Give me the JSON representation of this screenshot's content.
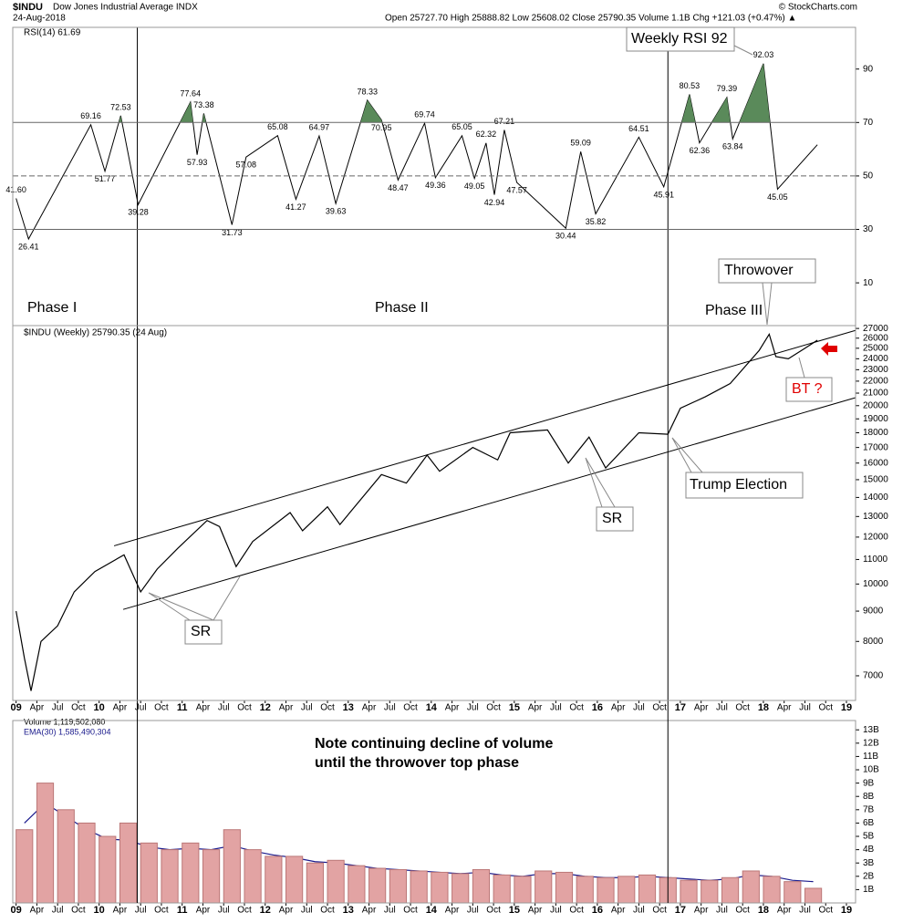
{
  "header": {
    "symbol": "$INDU",
    "name": "Dow Jones Industrial Average INDX",
    "date": "24-Aug-2018",
    "quote": "Open 25727.70 High 25888.82 Low 25608.02 Close 25790.35 Volume 1.1B Chg +121.03 (+0.47%) ▲",
    "credit": "© StockCharts.com"
  },
  "annotations": {
    "phase1": "Phase I",
    "phase2": "Phase II",
    "phase3": "Phase III",
    "weekly_rsi": "Weekly RSI 92",
    "throwover": "Throwover",
    "trump": "Trump Election",
    "sr1": "SR",
    "sr2": "SR",
    "bt": "BT ?",
    "note1": "Note continuing decline of volume",
    "note2": "until the throwover top phase"
  },
  "chart_data": [
    {
      "type": "line",
      "legend": "RSI(14) 61.69",
      "color": "#000000",
      "fill_color": "#5a8a5a",
      "fill_above": 70,
      "levels": [
        70,
        50,
        30
      ],
      "xlim": [
        2008.96,
        2019.11
      ],
      "ylim": [
        -6,
        105.6
      ],
      "yticks": [
        10,
        30,
        50,
        70,
        90
      ],
      "x": [
        2009.0,
        2009.15,
        2009.9,
        2010.07,
        2010.26,
        2010.47,
        2011.1,
        2011.18,
        2011.26,
        2011.6,
        2011.77,
        2012.15,
        2012.37,
        2012.65,
        2012.85,
        2013.23,
        2013.4,
        2013.6,
        2013.92,
        2014.05,
        2014.37,
        2014.52,
        2014.66,
        2014.76,
        2014.88,
        2015.03,
        2015.62,
        2015.8,
        2015.98,
        2016.5,
        2016.8,
        2017.11,
        2017.23,
        2017.56,
        2017.63,
        2018.0,
        2018.17,
        2018.65
      ],
      "values": [
        41.6,
        26.41,
        69.16,
        51.77,
        72.53,
        39.28,
        77.64,
        57.93,
        73.38,
        31.73,
        57.08,
        65.08,
        41.27,
        64.97,
        39.63,
        78.33,
        70.95,
        48.47,
        69.74,
        49.36,
        65.05,
        49.05,
        62.32,
        42.94,
        67.21,
        47.57,
        30.44,
        59.09,
        35.82,
        64.51,
        45.91,
        80.53,
        62.36,
        79.39,
        63.84,
        92.03,
        45.05,
        61.69
      ],
      "value_labels": [
        "41.60",
        "26.41",
        "69.16",
        "51.77",
        "72.53",
        "39.28",
        "77.64",
        "57.93",
        "73.38",
        "31.73",
        "57.08",
        "65.08",
        "41.27",
        "64.97",
        "39.63",
        "78.33",
        "70.95",
        "48.47",
        "69.74",
        "49.36",
        "65.05",
        "49.05",
        "62.32",
        "42.94",
        "67.21",
        "47.57",
        "30.44",
        "59.09",
        "35.82",
        "64.51",
        "45.91",
        "80.53",
        "62.36",
        "79.39",
        "63.84",
        "92.03",
        "45.05",
        null
      ]
    },
    {
      "type": "line",
      "legend": "$INDU (Weekly) 25790.35 (24 Aug)",
      "color": "#000000",
      "log_scale": true,
      "xlim": [
        2008.96,
        2019.11
      ],
      "ylim": [
        6360,
        27300
      ],
      "yticks": [
        7000,
        8000,
        9000,
        10000,
        11000,
        12000,
        13000,
        14000,
        15000,
        16000,
        17000,
        18000,
        19000,
        20000,
        21000,
        22000,
        23000,
        24000,
        25000,
        26000,
        27000
      ],
      "xticks": [
        {
          "value": 2009,
          "label": "09"
        },
        {
          "value": 2009.25,
          "label": "Apr"
        },
        {
          "value": 2009.5,
          "label": "Jul"
        },
        {
          "value": 2009.75,
          "label": "Oct"
        },
        {
          "value": 2010,
          "label": "10"
        },
        {
          "value": 2010.25,
          "label": "Apr"
        },
        {
          "value": 2010.5,
          "label": "Jul"
        },
        {
          "value": 2010.75,
          "label": "Oct"
        },
        {
          "value": 2011,
          "label": "11"
        },
        {
          "value": 2011.25,
          "label": "Apr"
        },
        {
          "value": 2011.5,
          "label": "Jul"
        },
        {
          "value": 2011.75,
          "label": "Oct"
        },
        {
          "value": 2012,
          "label": "12"
        },
        {
          "value": 2012.25,
          "label": "Apr"
        },
        {
          "value": 2012.5,
          "label": "Jul"
        },
        {
          "value": 2012.75,
          "label": "Oct"
        },
        {
          "value": 2013,
          "label": "13"
        },
        {
          "value": 2013.25,
          "label": "Apr"
        },
        {
          "value": 2013.5,
          "label": "Jul"
        },
        {
          "value": 2013.75,
          "label": "Oct"
        },
        {
          "value": 2014,
          "label": "14"
        },
        {
          "value": 2014.25,
          "label": "Apr"
        },
        {
          "value": 2014.5,
          "label": "Jul"
        },
        {
          "value": 2014.75,
          "label": "Oct"
        },
        {
          "value": 2015,
          "label": "15"
        },
        {
          "value": 2015.25,
          "label": "Apr"
        },
        {
          "value": 2015.5,
          "label": "Jul"
        },
        {
          "value": 2015.75,
          "label": "Oct"
        },
        {
          "value": 2016,
          "label": "16"
        },
        {
          "value": 2016.25,
          "label": "Apr"
        },
        {
          "value": 2016.5,
          "label": "Jul"
        },
        {
          "value": 2016.75,
          "label": "Oct"
        },
        {
          "value": 2017,
          "label": "17"
        },
        {
          "value": 2017.25,
          "label": "Apr"
        },
        {
          "value": 2017.5,
          "label": "Jul"
        },
        {
          "value": 2017.75,
          "label": "Oct"
        },
        {
          "value": 2018,
          "label": "18"
        },
        {
          "value": 2018.25,
          "label": "Apr"
        },
        {
          "value": 2018.5,
          "label": "Jul"
        },
        {
          "value": 2018.75,
          "label": "Oct"
        },
        {
          "value": 2019,
          "label": "19"
        }
      ],
      "x": [
        2009.0,
        2009.1,
        2009.18,
        2009.3,
        2009.5,
        2009.7,
        2009.95,
        2010.3,
        2010.5,
        2010.7,
        2010.95,
        2011.3,
        2011.45,
        2011.65,
        2011.85,
        2012.3,
        2012.45,
        2012.75,
        2012.9,
        2013.4,
        2013.7,
        2013.95,
        2014.1,
        2014.5,
        2014.8,
        2014.95,
        2015.4,
        2015.65,
        2015.9,
        2016.1,
        2016.5,
        2016.85,
        2017.0,
        2017.3,
        2017.6,
        2017.95,
        2018.07,
        2018.15,
        2018.3,
        2018.5,
        2018.65
      ],
      "values": [
        9000,
        7500,
        6600,
        8000,
        8500,
        9700,
        10500,
        11200,
        9700,
        10600,
        11500,
        12800,
        12500,
        10700,
        11800,
        13200,
        12300,
        13500,
        12600,
        15300,
        14800,
        16500,
        15500,
        17000,
        16200,
        18000,
        18200,
        16000,
        17700,
        15700,
        18000,
        17900,
        19800,
        20700,
        21800,
        24800,
        26400,
        24200,
        24000,
        25000,
        25790.35
      ],
      "trendlines": [
        {
          "x": [
            2010.18,
            2019.11
          ],
          "values": [
            11600,
            26800
          ]
        },
        {
          "x": [
            2010.29,
            2019.11
          ],
          "values": [
            9060,
            20630
          ]
        }
      ],
      "vertical_lines": [
        2010.46,
        2016.85
      ]
    },
    {
      "type": "bar",
      "legend": [
        "Volume 1,119,502,080",
        "EMA(30) 1,585,490,304"
      ],
      "xlim": [
        2008.96,
        2019.11
      ],
      "ylim": [
        0,
        13.7
      ],
      "yticks": [
        {
          "value": 1,
          "label": "1B"
        },
        {
          "value": 2,
          "label": "2B"
        },
        {
          "value": 3,
          "label": "3B"
        },
        {
          "value": 4,
          "label": "4B"
        },
        {
          "value": 5,
          "label": "5B"
        },
        {
          "value": 6,
          "label": "6B"
        },
        {
          "value": 7,
          "label": "7B"
        },
        {
          "value": 8,
          "label": "8B"
        },
        {
          "value": 9,
          "label": "9B"
        },
        {
          "value": 10,
          "label": "10B"
        },
        {
          "value": 11,
          "label": "11B"
        },
        {
          "value": 12,
          "label": "12B"
        },
        {
          "value": 13,
          "label": "13B"
        }
      ],
      "xticks": [
        {
          "value": 2009,
          "label": "09"
        },
        {
          "value": 2009.25,
          "label": "Apr"
        },
        {
          "value": 2009.5,
          "label": "Jul"
        },
        {
          "value": 2009.75,
          "label": "Oct"
        },
        {
          "value": 2010,
          "label": "10"
        },
        {
          "value": 2010.25,
          "label": "Apr"
        },
        {
          "value": 2010.5,
          "label": "Jul"
        },
        {
          "value": 2010.75,
          "label": "Oct"
        },
        {
          "value": 2011,
          "label": "11"
        },
        {
          "value": 2011.25,
          "label": "Apr"
        },
        {
          "value": 2011.5,
          "label": "Jul"
        },
        {
          "value": 2011.75,
          "label": "Oct"
        },
        {
          "value": 2012,
          "label": "12"
        },
        {
          "value": 2012.25,
          "label": "Apr"
        },
        {
          "value": 2012.5,
          "label": "Jul"
        },
        {
          "value": 2012.75,
          "label": "Oct"
        },
        {
          "value": 2013,
          "label": "13"
        },
        {
          "value": 2013.25,
          "label": "Apr"
        },
        {
          "value": 2013.5,
          "label": "Jul"
        },
        {
          "value": 2013.75,
          "label": "Oct"
        },
        {
          "value": 2014,
          "label": "14"
        },
        {
          "value": 2014.25,
          "label": "Apr"
        },
        {
          "value": 2014.5,
          "label": "Jul"
        },
        {
          "value": 2014.75,
          "label": "Oct"
        },
        {
          "value": 2015,
          "label": "15"
        },
        {
          "value": 2015.25,
          "label": "Apr"
        },
        {
          "value": 2015.5,
          "label": "Jul"
        },
        {
          "value": 2015.75,
          "label": "Oct"
        },
        {
          "value": 2016,
          "label": "16"
        },
        {
          "value": 2016.25,
          "label": "Apr"
        },
        {
          "value": 2016.5,
          "label": "Jul"
        },
        {
          "value": 2016.75,
          "label": "Oct"
        },
        {
          "value": 2017,
          "label": "17"
        },
        {
          "value": 2017.25,
          "label": "Apr"
        },
        {
          "value": 2017.5,
          "label": "Jul"
        },
        {
          "value": 2017.75,
          "label": "Oct"
        },
        {
          "value": 2018,
          "label": "18"
        },
        {
          "value": 2018.25,
          "label": "Apr"
        },
        {
          "value": 2018.5,
          "label": "Jul"
        },
        {
          "value": 2018.75,
          "label": "Oct"
        },
        {
          "value": 2019,
          "label": "19"
        }
      ],
      "x": [
        2009.0,
        2009.25,
        2009.5,
        2009.75,
        2010.0,
        2010.25,
        2010.5,
        2010.75,
        2011.0,
        2011.25,
        2011.5,
        2011.75,
        2012.0,
        2012.25,
        2012.5,
        2012.75,
        2013.0,
        2013.25,
        2013.5,
        2013.75,
        2014.0,
        2014.25,
        2014.5,
        2014.75,
        2015.0,
        2015.25,
        2015.5,
        2015.75,
        2016.0,
        2016.25,
        2016.5,
        2016.75,
        2017.0,
        2017.25,
        2017.5,
        2017.75,
        2018.0,
        2018.25,
        2018.5
      ],
      "series": [
        {
          "name": "Volume",
          "color": "#e2a3a3",
          "values": [
            5.5,
            9,
            7,
            6,
            5,
            6,
            4.5,
            4,
            4.5,
            4,
            5.5,
            4,
            3.5,
            3.5,
            3,
            3.2,
            2.8,
            2.6,
            2.5,
            2.4,
            2.3,
            2.2,
            2.5,
            2.1,
            2.0,
            2.4,
            2.3,
            2.0,
            1.9,
            2.0,
            2.1,
            1.9,
            1.7,
            1.7,
            1.9,
            2.4,
            2.0,
            1.6,
            1.1
          ]
        },
        {
          "name": "EMA(30)",
          "color": "#1a1a8c",
          "values": [
            6,
            7.5,
            6.5,
            5.5,
            4.8,
            4.7,
            4.2,
            4.0,
            4.1,
            4.0,
            4.3,
            3.9,
            3.6,
            3.4,
            3.1,
            3.0,
            2.8,
            2.6,
            2.5,
            2.4,
            2.3,
            2.2,
            2.3,
            2.1,
            2.0,
            2.2,
            2.2,
            2.0,
            1.9,
            1.9,
            2.0,
            1.9,
            1.8,
            1.7,
            1.8,
            2.1,
            2.0,
            1.7,
            1.6
          ]
        }
      ]
    }
  ]
}
